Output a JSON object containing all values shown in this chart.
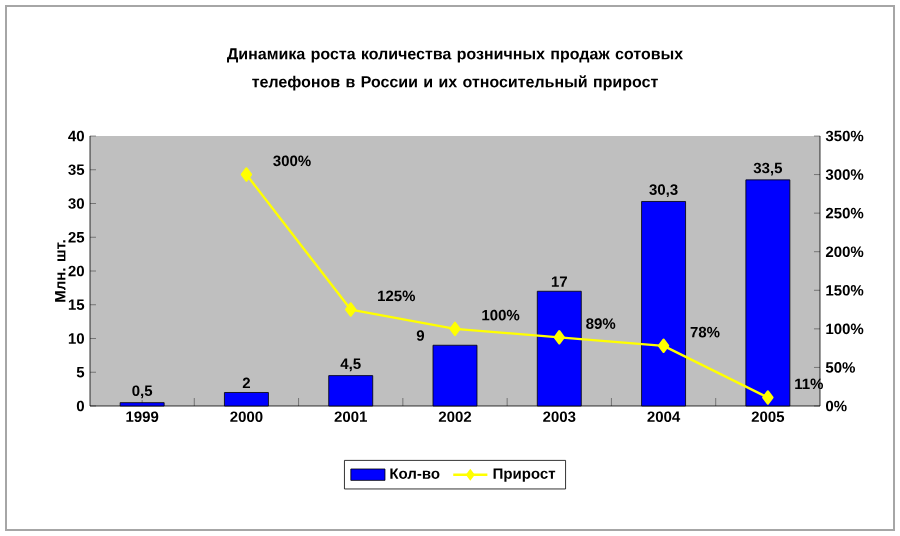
{
  "chart_data": {
    "type": "bar",
    "title": "Динамика роста количества розничных продаж сотовых телефонов в России и их относительный прирост",
    "categories": [
      "1999",
      "2000",
      "2001",
      "2002",
      "2003",
      "2004",
      "2005"
    ],
    "series": [
      {
        "name": "Кол-во",
        "color": "#0000ff",
        "values": [
          0.5,
          2,
          4.5,
          9,
          17,
          30.3,
          33.5
        ],
        "value_labels": [
          "0,5",
          "2",
          "4,5",
          "9",
          "17",
          "30,3",
          "33,5"
        ]
      },
      {
        "name": "Прирост",
        "type": "line",
        "axis": "y2",
        "color": "#ffff00",
        "marker": "diamond",
        "values": [
          null,
          300,
          125,
          100,
          89,
          78,
          11
        ],
        "value_labels": [
          null,
          "300%",
          "125%",
          "100%",
          "89%",
          "78%",
          "11%"
        ]
      }
    ],
    "ylabel": "Млн. шт.",
    "ylim": [
      0,
      40
    ],
    "yticks": [
      0,
      5,
      10,
      15,
      20,
      25,
      30,
      35,
      40
    ],
    "y2lim": [
      0,
      350
    ],
    "y2ticks": [
      {
        "value": 0,
        "label": "0%"
      },
      {
        "value": 50,
        "label": "50%"
      },
      {
        "value": 100,
        "label": "100%"
      },
      {
        "value": 150,
        "label": "150%"
      },
      {
        "value": 200,
        "label": "200%"
      },
      {
        "value": 250,
        "label": "250%"
      },
      {
        "value": 300,
        "label": "300%"
      },
      {
        "value": 350,
        "label": "350%"
      }
    ],
    "grid": false,
    "legend": "bottom"
  }
}
